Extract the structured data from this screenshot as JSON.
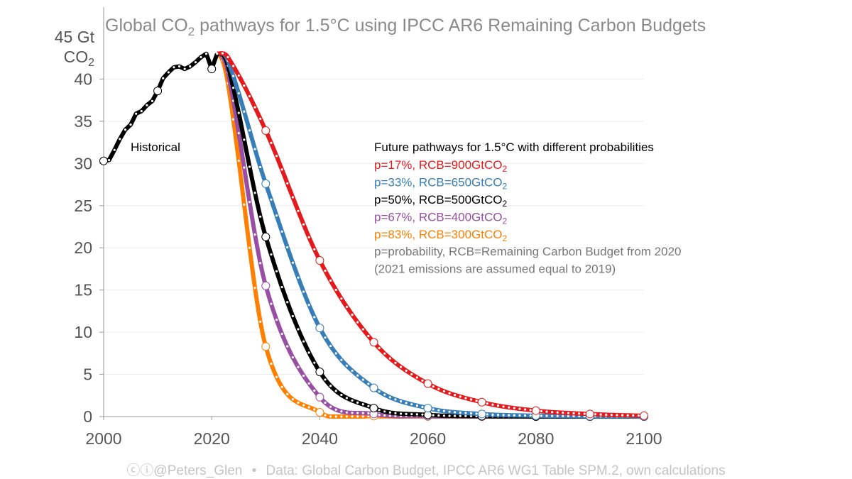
{
  "chart_data": {
    "type": "line",
    "title_parts": [
      "Global CO",
      "2",
      " pathways for 1.5°C using IPCC AR6 Remaining Carbon Budgets"
    ],
    "ylabel_top": "45 Gt",
    "ylabel_unit": [
      "CO",
      "2"
    ],
    "xlim": [
      2000,
      2100
    ],
    "ylim": [
      0,
      45
    ],
    "xticks": [
      2000,
      2020,
      2040,
      2060,
      2080,
      2100
    ],
    "yticks": [
      0,
      5,
      10,
      15,
      20,
      25,
      30,
      35,
      40
    ],
    "grid": true,
    "historical": {
      "name": "Historical",
      "color": "#000000",
      "x": [
        2000,
        2001,
        2002,
        2003,
        2004,
        2005,
        2006,
        2007,
        2008,
        2009,
        2010,
        2011,
        2012,
        2013,
        2014,
        2015,
        2016,
        2017,
        2018,
        2019,
        2020,
        2021
      ],
      "y": [
        30.3,
        30.4,
        31.6,
        32.9,
        34.0,
        34.6,
        35.9,
        36.2,
        36.9,
        37.4,
        38.6,
        40.1,
        40.8,
        41.4,
        41.5,
        41.2,
        41.5,
        42.0,
        42.6,
        43.0,
        41.2,
        43.0
      ]
    },
    "legend_title": "Future pathways for 1.5°C with different probabilities",
    "series": [
      {
        "label": "p=17%, RCB=900GtCO",
        "sub": "2",
        "color": "#e41a1c",
        "x": [
          2021,
          2023,
          2030,
          2040,
          2050,
          2060,
          2070,
          2080,
          2090,
          2100
        ],
        "y": [
          43,
          42.6,
          33.9,
          18.5,
          8.8,
          3.9,
          1.7,
          0.7,
          0.3,
          0.1
        ]
      },
      {
        "label": "p=33%, RCB=650GtCO",
        "sub": "2",
        "color": "#377eb8",
        "x": [
          2021,
          2023,
          2030,
          2040,
          2050,
          2060,
          2070,
          2080,
          2090,
          2100
        ],
        "y": [
          43,
          42.2,
          27.6,
          10.5,
          3.4,
          1.0,
          0.3,
          0.1,
          0.03,
          0.01
        ]
      },
      {
        "label": "p=50%, RCB=500GtCO",
        "sub": "2",
        "color": "#000000",
        "x": [
          2021,
          2023,
          2030,
          2040,
          2050,
          2060,
          2070,
          2080,
          2090,
          2100
        ],
        "y": [
          43,
          41.6,
          21.3,
          5.3,
          1.0,
          0.2,
          0.04,
          0.01,
          0,
          0
        ]
      },
      {
        "label": "p=67%, RCB=400GtCO",
        "sub": "2",
        "color": "#984ea3",
        "x": [
          2021,
          2023,
          2030,
          2040,
          2050,
          2060,
          2070,
          2080,
          2090,
          2100
        ],
        "y": [
          43,
          40.8,
          15.5,
          2.3,
          0.3,
          0.05,
          0.01,
          0,
          0,
          0
        ]
      },
      {
        "label": "p=83%, RCB=300GtCO",
        "sub": "2",
        "color": "#ff7f00",
        "x": [
          2021,
          2023,
          2030,
          2040,
          2050,
          2060,
          2070,
          2080,
          2090,
          2100
        ],
        "y": [
          43,
          39.5,
          8.3,
          0.5,
          0.05,
          0.01,
          0,
          0,
          0,
          0
        ]
      }
    ],
    "notes": [
      "p=probability, RCB=Remaining Carbon Budget from 2020",
      "(2021 emissions are assumed equal to 2019)"
    ]
  },
  "footer": {
    "handle": "@Peters_Glen",
    "bullet": "•",
    "source": "Data: Global Carbon Budget, IPCC AR6 WG1 Table SPM.2, own calculations"
  }
}
